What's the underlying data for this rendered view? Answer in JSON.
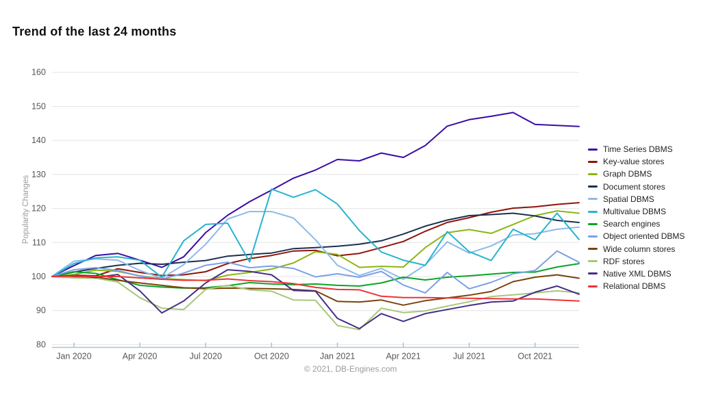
{
  "header": {
    "title": "Trend of the last 24 months"
  },
  "footer": {
    "credit": "© 2021, DB-Engines.com"
  },
  "chart_data": {
    "type": "line",
    "title": "Trend of the last 24 months",
    "xlabel": "",
    "ylabel": "Popularity Changes",
    "ylim": [
      80,
      160
    ],
    "grid": true,
    "legend_position": "right",
    "months": [
      "Dec 2019",
      "Jan 2020",
      "Feb 2020",
      "Mar 2020",
      "Apr 2020",
      "May 2020",
      "Jun 2020",
      "Jul 2020",
      "Aug 2020",
      "Sep 2020",
      "Oct 2020",
      "Nov 2020",
      "Dec 2020",
      "Jan 2021",
      "Feb 2021",
      "Mar 2021",
      "Apr 2021",
      "May 2021",
      "Jun 2021",
      "Jul 2021",
      "Aug 2021",
      "Sep 2021",
      "Oct 2021",
      "Nov 2021",
      "Dec 2021"
    ],
    "y_ticks": [
      80,
      90,
      100,
      110,
      120,
      130,
      140,
      150,
      160
    ],
    "x_ticks": [
      {
        "index": 1,
        "label": "Jan 2020"
      },
      {
        "index": 4,
        "label": "Apr 2020"
      },
      {
        "index": 7,
        "label": "Jul 2020"
      },
      {
        "index": 10,
        "label": "Oct 2020"
      },
      {
        "index": 13,
        "label": "Jan 2021"
      },
      {
        "index": 16,
        "label": "Apr 2021"
      },
      {
        "index": 19,
        "label": "Jul 2021"
      },
      {
        "index": 22,
        "label": "Oct 2021"
      }
    ],
    "series": [
      {
        "name": "Time Series DBMS",
        "color": "#3B0BA5",
        "values": [
          100,
          103.2,
          106.2,
          106.8,
          104.8,
          102.7,
          105.8,
          112.9,
          118.0,
          122.0,
          125.4,
          128.9,
          131.3,
          134.4,
          134.0,
          136.3,
          135.0,
          138.5,
          144.2,
          146.1,
          147.1,
          148.2,
          144.7,
          144.4,
          144.1
        ]
      },
      {
        "name": "Key-value stores",
        "color": "#8E1409",
        "values": [
          100,
          100.4,
          100.2,
          102.3,
          101.2,
          100.3,
          100.5,
          101.4,
          103.8,
          105.3,
          106.2,
          107.5,
          107.7,
          106.1,
          106.8,
          108.5,
          110.3,
          113.3,
          115.9,
          117.3,
          118.9,
          120.1,
          120.5,
          121.2,
          121.7
        ]
      },
      {
        "name": "Graph DBMS",
        "color": "#8CB513",
        "values": [
          100,
          100.6,
          101.9,
          101.5,
          100.2,
          99.4,
          99.1,
          98.8,
          100.4,
          101.2,
          102.2,
          104.0,
          107.3,
          106.5,
          102.7,
          103.0,
          102.8,
          108.5,
          112.9,
          113.8,
          112.7,
          115.3,
          117.9,
          119.3,
          118.6
        ]
      },
      {
        "name": "Document stores",
        "color": "#1A3050",
        "values": [
          100,
          101.3,
          102.4,
          103.3,
          103.9,
          103.6,
          104.2,
          104.7,
          106.0,
          106.5,
          106.9,
          108.2,
          108.5,
          108.9,
          109.5,
          110.5,
          112.5,
          114.8,
          116.6,
          117.9,
          118.2,
          118.6,
          117.8,
          116.5,
          115.9
        ]
      },
      {
        "name": "Spatial DBMS",
        "color": "#8CBAE8",
        "values": [
          100,
          104.5,
          105.2,
          104.8,
          101.8,
          99.5,
          103.5,
          109.5,
          116.9,
          119.1,
          119.1,
          117.2,
          110.8,
          103.3,
          100.3,
          102.4,
          99.2,
          103.4,
          110.2,
          106.9,
          109.0,
          112.2,
          112.6,
          113.9,
          114.5
        ]
      },
      {
        "name": "Multivalue DBMS",
        "color": "#27B4CE",
        "values": [
          100,
          103.8,
          105.5,
          105.8,
          104.8,
          99.8,
          110.5,
          115.3,
          115.7,
          104.3,
          125.7,
          123.3,
          125.5,
          121.3,
          113.5,
          107.2,
          104.8,
          103.3,
          113.2,
          107.3,
          104.7,
          113.9,
          110.8,
          118.6,
          110.9
        ]
      },
      {
        "name": "Search engines",
        "color": "#0AA327",
        "values": [
          100,
          101.4,
          100.9,
          99.1,
          97.4,
          96.9,
          96.6,
          96.7,
          97.3,
          98.2,
          97.8,
          97.6,
          97.8,
          97.4,
          97.2,
          98.1,
          99.8,
          99.0,
          99.8,
          100.2,
          100.7,
          101.2,
          101.3,
          102.8,
          103.8
        ]
      },
      {
        "name": "Object oriented DBMS",
        "color": "#7AA0E4",
        "values": [
          100,
          102.0,
          102.6,
          101.8,
          100.1,
          99.2,
          101.0,
          103.3,
          104.2,
          102.6,
          103.1,
          102.4,
          99.9,
          100.8,
          99.8,
          101.5,
          97.5,
          95.2,
          101.2,
          96.4,
          98.3,
          100.8,
          101.8,
          107.5,
          104.2
        ]
      },
      {
        "name": "Wide column stores",
        "color": "#7A430B",
        "values": [
          100,
          99.9,
          99.8,
          98.9,
          98.1,
          97.4,
          96.7,
          96.4,
          96.6,
          96.5,
          96.4,
          96.2,
          95.8,
          92.7,
          92.5,
          93.1,
          91.6,
          92.9,
          93.7,
          94.5,
          95.6,
          98.5,
          99.8,
          100.5,
          99.5
        ]
      },
      {
        "name": "RDF stores",
        "color": "#A5C878",
        "values": [
          100,
          99.6,
          99.5,
          98.4,
          93.8,
          90.7,
          90.3,
          96.2,
          97.4,
          96.1,
          95.7,
          93.1,
          93.0,
          85.6,
          84.4,
          90.7,
          89.4,
          89.9,
          91.3,
          92.6,
          94.1,
          94.6,
          95.2,
          95.8,
          95.2
        ]
      },
      {
        "name": "Native XML DBMS",
        "color": "#462D87",
        "values": [
          100,
          100.3,
          99.7,
          100.6,
          95.8,
          89.3,
          92.8,
          98.1,
          102.0,
          101.5,
          100.5,
          95.9,
          95.7,
          87.7,
          84.7,
          89.1,
          86.8,
          89.1,
          90.3,
          91.5,
          92.5,
          92.8,
          95.4,
          97.2,
          94.8
        ]
      },
      {
        "name": "Relational DBMS",
        "color": "#EC3338",
        "values": [
          100,
          100.1,
          100.0,
          100.0,
          99.6,
          99.2,
          98.9,
          98.9,
          99.3,
          98.8,
          98.5,
          97.9,
          96.8,
          96.2,
          96.1,
          94.2,
          93.8,
          93.8,
          93.7,
          93.6,
          93.5,
          93.4,
          93.4,
          93.1,
          92.8
        ]
      }
    ]
  }
}
